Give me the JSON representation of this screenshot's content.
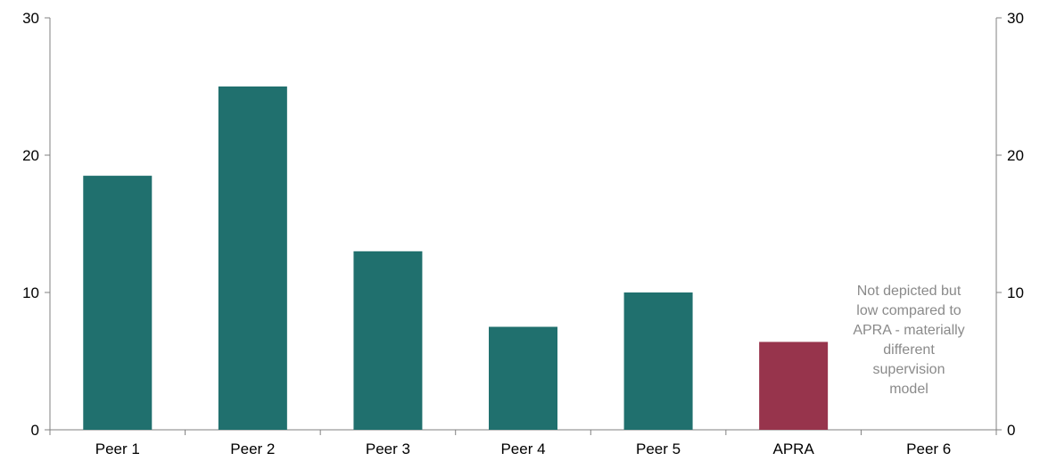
{
  "chart_data": {
    "type": "bar",
    "categories": [
      "Peer 1",
      "Peer 2",
      "Peer 3",
      "Peer 4",
      "Peer 5",
      "APRA",
      "Peer 6"
    ],
    "values": [
      18.5,
      25,
      13,
      7.5,
      10,
      6.4,
      null
    ],
    "highlight_category": "APRA",
    "title": "",
    "xlabel": "",
    "ylabel": "",
    "ylim": [
      0,
      30
    ],
    "yticks": [
      0,
      10,
      20,
      30
    ],
    "y_axis_both_sides": true,
    "grid": false,
    "legend": "none",
    "annotations": [
      {
        "category": "Peer 6",
        "lines": [
          "Not depicted but",
          "low compared to",
          "APRA - materially",
          "different",
          "supervision",
          "model"
        ]
      }
    ],
    "colors": {
      "bar": "#20706E",
      "highlight": "#97344C",
      "annotation_text": "#8A8A8A",
      "axis": "#808080"
    }
  }
}
